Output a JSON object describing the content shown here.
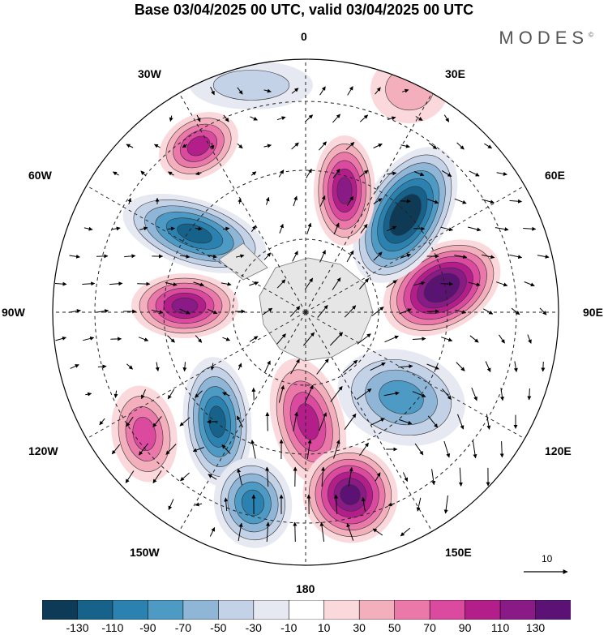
{
  "title": "Base 03/04/2025 00 UTC, valid 03/04/2025 00 UTC",
  "brand": "MODES",
  "brand_mark": "©",
  "longitude_labels": [
    "0",
    "30E",
    "60E",
    "90E",
    "120E",
    "150E",
    "180",
    "150W",
    "120W",
    "90W",
    "60W",
    "30W"
  ],
  "wind_reference": {
    "label": "10"
  },
  "colorbar": {
    "ticks": [
      "-130",
      "-110",
      "-90",
      "-70",
      "-50",
      "-30",
      "-10",
      "10",
      "30",
      "50",
      "70",
      "90",
      "110",
      "130"
    ],
    "colors": [
      "#0d3a56",
      "#17628a",
      "#2b82b0",
      "#4d9ac4",
      "#8fb6d7",
      "#c3d2e6",
      "#e6e8f2",
      "#ffffff",
      "#fad8dc",
      "#f3b0bc",
      "#ea78a9",
      "#dc4aa0",
      "#b41e8b",
      "#8a1a86",
      "#5b1274"
    ]
  },
  "anomaly_centers": [
    {
      "name": "ridge-30w",
      "value": 80
    },
    {
      "name": "trough-60w",
      "value": -100
    },
    {
      "name": "ridge-90w",
      "value": 110
    },
    {
      "name": "ridge-120w",
      "value": 70
    },
    {
      "name": "trough-150w-north",
      "value": -100
    },
    {
      "name": "trough-150w-south",
      "value": -90
    },
    {
      "name": "ridge-180",
      "value": 90
    },
    {
      "name": "ridge-150e",
      "value": 120
    },
    {
      "name": "trough-120e",
      "value": -70
    },
    {
      "name": "ridge-90e",
      "value": 140
    },
    {
      "name": "trough-45e",
      "value": -140
    },
    {
      "name": "ridge-15e",
      "value": 110
    },
    {
      "name": "ridge-0-30e",
      "value": 30
    },
    {
      "name": "trough-0",
      "value": -30
    }
  ]
}
